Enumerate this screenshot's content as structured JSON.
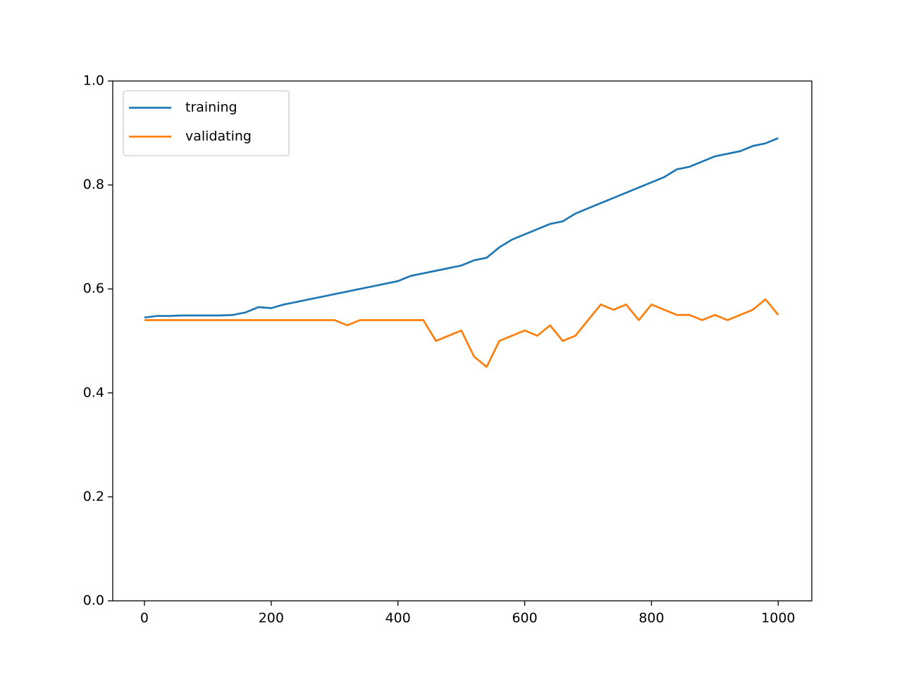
{
  "chart_data": {
    "type": "line",
    "x": [
      0,
      20,
      40,
      60,
      80,
      100,
      120,
      140,
      160,
      180,
      200,
      220,
      240,
      260,
      280,
      300,
      320,
      340,
      360,
      380,
      400,
      420,
      440,
      460,
      480,
      500,
      520,
      540,
      560,
      580,
      600,
      620,
      640,
      660,
      680,
      700,
      720,
      740,
      760,
      780,
      800,
      820,
      840,
      860,
      880,
      900,
      920,
      940,
      960,
      980,
      1000
    ],
    "series": [
      {
        "name": "training",
        "color": "#1f77b4",
        "values": [
          0.545,
          0.548,
          0.548,
          0.549,
          0.549,
          0.549,
          0.549,
          0.55,
          0.555,
          0.565,
          0.563,
          0.57,
          0.575,
          0.58,
          0.585,
          0.59,
          0.595,
          0.6,
          0.605,
          0.61,
          0.615,
          0.625,
          0.63,
          0.635,
          0.64,
          0.645,
          0.655,
          0.66,
          0.68,
          0.695,
          0.705,
          0.715,
          0.725,
          0.73,
          0.745,
          0.755,
          0.765,
          0.775,
          0.785,
          0.795,
          0.805,
          0.815,
          0.83,
          0.835,
          0.845,
          0.855,
          0.86,
          0.865,
          0.875,
          0.88,
          0.89
        ]
      },
      {
        "name": "validating",
        "color": "#ff7f0e",
        "values": [
          0.54,
          0.54,
          0.54,
          0.54,
          0.54,
          0.54,
          0.54,
          0.54,
          0.54,
          0.54,
          0.54,
          0.54,
          0.54,
          0.54,
          0.54,
          0.54,
          0.53,
          0.54,
          0.54,
          0.54,
          0.54,
          0.54,
          0.54,
          0.5,
          0.51,
          0.52,
          0.47,
          0.45,
          0.5,
          0.51,
          0.52,
          0.51,
          0.53,
          0.5,
          0.51,
          0.54,
          0.57,
          0.56,
          0.57,
          0.54,
          0.57,
          0.56,
          0.55,
          0.55,
          0.54,
          0.55,
          0.54,
          0.55,
          0.56,
          0.58,
          0.55
        ]
      }
    ],
    "xlim": [
      -50,
      1053
    ],
    "xticks": [
      0,
      200,
      400,
      600,
      800,
      1000
    ],
    "ylim": [
      0,
      1
    ],
    "yticks": [
      {
        "value": 0,
        "label": "0.0"
      },
      0.2,
      0.4,
      0.6,
      0.8,
      {
        "value": 1,
        "label": "1.0"
      }
    ],
    "legend": "upper left"
  }
}
